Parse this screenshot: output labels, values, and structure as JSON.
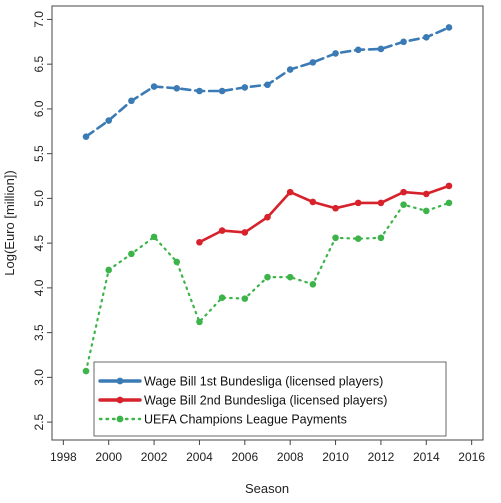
{
  "chart_data": {
    "type": "line",
    "title": "",
    "xlabel": "Season",
    "ylabel": "Log(Euro [million])",
    "xlim": [
      1997.5,
      2016.5
    ],
    "ylim": [
      2.3,
      7.15
    ],
    "xticks": [
      1998,
      2000,
      2002,
      2004,
      2006,
      2008,
      2010,
      2012,
      2014,
      2016
    ],
    "yticks": [
      2.5,
      3.0,
      3.5,
      4.0,
      4.5,
      5.0,
      5.5,
      6.0,
      6.5,
      7.0
    ],
    "ytick_labels": [
      "2.5",
      "3.0",
      "3.5",
      "4.0",
      "4.5",
      "5.0",
      "5.5",
      "6.0",
      "6.5",
      "7.0"
    ],
    "grid": false,
    "legend_position": "bottom-left",
    "series": [
      {
        "name": "Wage Bill 1st Bundesliga (licensed players)",
        "color": "#3b7bb5",
        "style": "dashed",
        "x": [
          1999,
          2000,
          2001,
          2002,
          2003,
          2004,
          2005,
          2006,
          2007,
          2008,
          2009,
          2010,
          2011,
          2012,
          2013,
          2014,
          2015
        ],
        "y": [
          5.69,
          5.87,
          6.09,
          6.25,
          6.23,
          6.2,
          6.2,
          6.24,
          6.27,
          6.44,
          6.52,
          6.62,
          6.66,
          6.67,
          6.75,
          6.8,
          6.91
        ]
      },
      {
        "name": "Wage Bill 2nd Bundesliga (licensed players)",
        "color": "#d7222c",
        "style": "solid",
        "x": [
          2004,
          2005,
          2006,
          2007,
          2008,
          2009,
          2010,
          2011,
          2012,
          2013,
          2014,
          2015
        ],
        "y": [
          4.51,
          4.64,
          4.62,
          4.79,
          5.07,
          4.96,
          4.89,
          4.95,
          4.95,
          5.07,
          5.05,
          5.14
        ]
      },
      {
        "name": "UEFA Champions League Payments",
        "color": "#3db44a",
        "style": "dotted",
        "x": [
          1999,
          2000,
          2001,
          2002,
          2003,
          2004,
          2005,
          2006,
          2007,
          2008,
          2009,
          2010,
          2011,
          2012,
          2013,
          2014,
          2015
        ],
        "y": [
          3.07,
          4.2,
          4.38,
          4.57,
          4.29,
          3.62,
          3.89,
          3.88,
          4.12,
          4.12,
          4.04,
          4.56,
          4.55,
          4.56,
          4.93,
          4.86,
          4.95
        ]
      }
    ]
  }
}
